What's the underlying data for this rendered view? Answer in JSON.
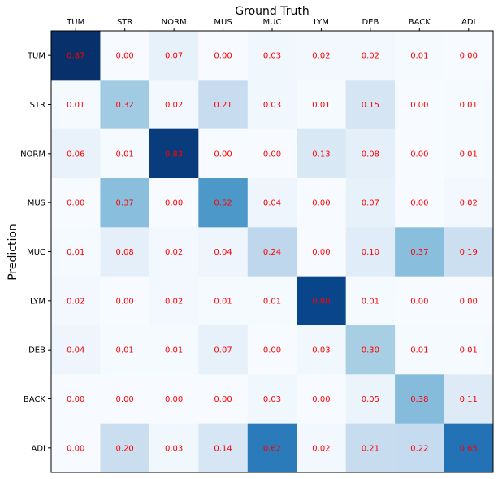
{
  "chart_data": {
    "type": "heatmap",
    "xlabel": "Ground Truth",
    "ylabel": "Prediction",
    "x_categories": [
      "TUM",
      "STR",
      "NORM",
      "MUS",
      "MUC",
      "LYM",
      "DEB",
      "BACK",
      "ADI"
    ],
    "y_categories": [
      "TUM",
      "STR",
      "NORM",
      "MUS",
      "MUC",
      "LYM",
      "DEB",
      "BACK",
      "ADI"
    ],
    "x_axis_position": "top",
    "colormap": "Blues",
    "value_range": [
      0,
      0.87
    ],
    "label_color": "#ff0000",
    "grid": false,
    "values": [
      [
        0.87,
        0.0,
        0.07,
        0.0,
        0.03,
        0.02,
        0.02,
        0.01,
        0.0
      ],
      [
        0.01,
        0.32,
        0.02,
        0.21,
        0.03,
        0.01,
        0.15,
        0.0,
        0.01
      ],
      [
        0.06,
        0.01,
        0.83,
        0.0,
        0.0,
        0.13,
        0.08,
        0.0,
        0.01
      ],
      [
        0.0,
        0.37,
        0.0,
        0.52,
        0.04,
        0.0,
        0.07,
        0.0,
        0.02
      ],
      [
        0.01,
        0.08,
        0.02,
        0.04,
        0.24,
        0.0,
        0.1,
        0.37,
        0.19
      ],
      [
        0.02,
        0.0,
        0.02,
        0.01,
        0.01,
        0.8,
        0.01,
        0.0,
        0.0
      ],
      [
        0.04,
        0.01,
        0.01,
        0.07,
        0.0,
        0.03,
        0.3,
        0.01,
        0.01
      ],
      [
        0.0,
        0.0,
        0.0,
        0.0,
        0.03,
        0.0,
        0.05,
        0.38,
        0.11
      ],
      [
        0.0,
        0.2,
        0.03,
        0.14,
        0.62,
        0.02,
        0.21,
        0.22,
        0.65
      ]
    ]
  }
}
